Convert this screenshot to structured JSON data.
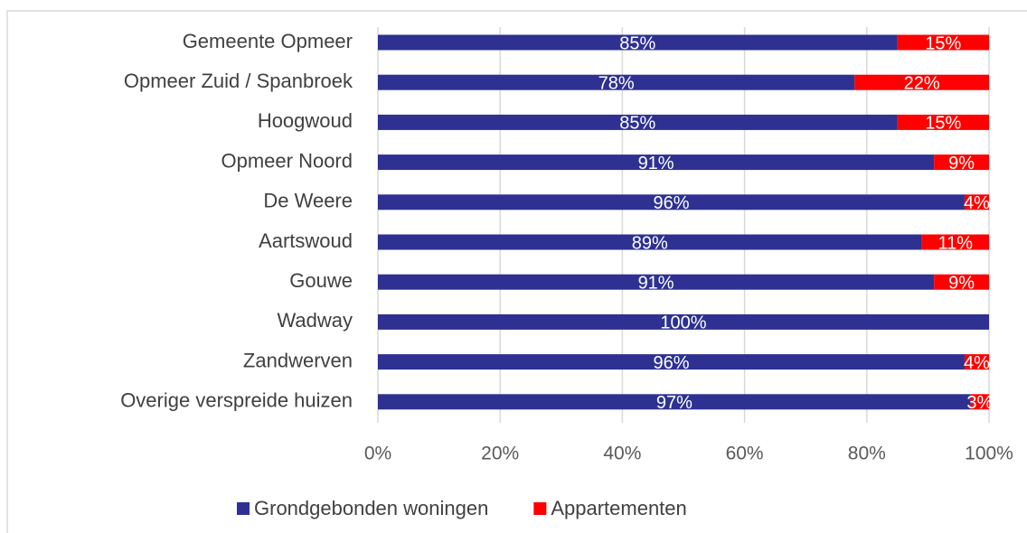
{
  "chart_data": {
    "type": "stacked_barh",
    "categories": [
      "Gemeente Opmeer",
      "Opmeer Zuid / Spanbroek",
      "Hoogwoud",
      "Opmeer Noord",
      "De Weere",
      "Aartswoud",
      "Gouwe",
      "Wadway",
      "Zandwerven",
      "Overige verspreide huizen"
    ],
    "series": [
      {
        "name": "Grondgebonden woningen",
        "color": "#2e3192",
        "values": [
          85,
          78,
          85,
          91,
          96,
          89,
          91,
          100,
          96,
          97
        ],
        "value_labels": [
          "85%",
          "78%",
          "85%",
          "91%",
          "96%",
          "89%",
          "91%",
          "100%",
          "96%",
          "97%"
        ]
      },
      {
        "name": "Appartementen",
        "color": "#ff0000",
        "values": [
          15,
          22,
          15,
          9,
          4,
          11,
          9,
          0,
          4,
          3
        ],
        "value_labels": [
          "15%",
          "22%",
          "15%",
          "9%",
          "4%",
          "11%",
          "9%",
          null,
          "4%",
          "3%"
        ]
      }
    ],
    "xlim": [
      0,
      100
    ],
    "xticks": [
      {
        "value": 0,
        "label": "0%"
      },
      {
        "value": 20,
        "label": "20%"
      },
      {
        "value": 40,
        "label": "40%"
      },
      {
        "value": 60,
        "label": "60%"
      },
      {
        "value": 80,
        "label": "80%"
      },
      {
        "value": 100,
        "label": "100%"
      }
    ],
    "grid": true,
    "legend": "bottom"
  }
}
